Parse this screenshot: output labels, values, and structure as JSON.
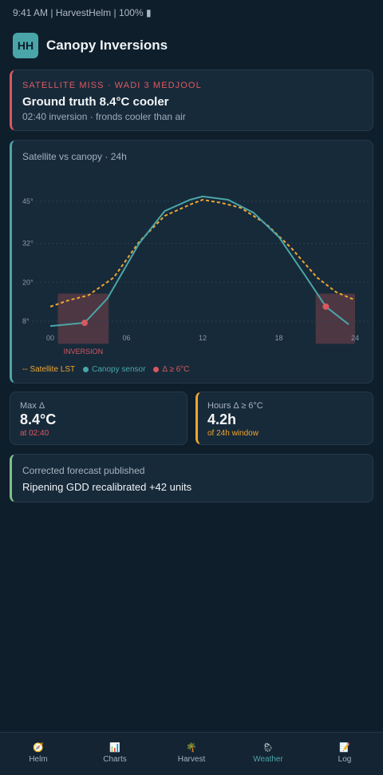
{
  "status_bar": {
    "text": "9:41 AM | HarvestHelm | 100% ▮"
  },
  "header": {
    "logo_text": "HH",
    "title": "Canopy Inversions"
  },
  "alert": {
    "kicker": "SATELLITE MISS · WADI 3 MEDJOOL",
    "headline": "Ground truth 8.4°C cooler",
    "subtext": "02:40 inversion · fronds cooler than air"
  },
  "chart_card": {
    "title": "Satellite vs canopy · 24h"
  },
  "chart_data": {
    "type": "line",
    "title": "Satellite vs canopy · 24h",
    "x_ticks": [
      "00",
      "06",
      "12",
      "18",
      "24"
    ],
    "y_ticks": [
      "8°",
      "20°",
      "32°",
      "45°"
    ],
    "xlim": [
      0,
      24
    ],
    "y_tick_values": [
      8,
      20,
      32,
      45
    ],
    "series": [
      {
        "name": "Satellite LST",
        "color": "#f0a630",
        "style": "dashed",
        "x": [
          0,
          1.5,
          3,
          5,
          7,
          9,
          11,
          12,
          13.5,
          15,
          17,
          19,
          21,
          22.5,
          24
        ],
        "y": [
          12.5,
          14.5,
          16,
          21.5,
          32.5,
          40.5,
          44,
          45.5,
          44.5,
          43,
          38,
          30.5,
          21.5,
          17,
          14.5
        ]
      },
      {
        "name": "Canopy sensor",
        "color": "#4aa5a8",
        "style": "solid",
        "x": [
          0,
          2.7,
          4.5,
          7,
          9,
          11,
          12,
          14,
          16,
          18,
          20,
          21.7,
          23.5
        ],
        "y": [
          6.5,
          7.5,
          15,
          32,
          42,
          45.5,
          46.5,
          45.5,
          41.5,
          34,
          22.5,
          12.5,
          7
        ]
      }
    ],
    "delta_points": {
      "name": "Δ ≥ 6°C",
      "color": "#d8585f",
      "x": [
        2.7,
        21.7
      ],
      "y": [
        7.5,
        12.5
      ]
    },
    "inversion_label": "INVERSION"
  },
  "legend": {
    "satellite": "-- Satellite LST",
    "canopy": "Canopy sensor",
    "delta": "Δ ≥ 6°C",
    "satellite_color": "#f0a630",
    "canopy_color": "#4aa5a8",
    "delta_color": "#d8585f"
  },
  "stats": {
    "max_delta": {
      "label": "Max Δ",
      "value": "8.4°C",
      "note": "at 02:40",
      "color": "#e0595f"
    },
    "hours_delta": {
      "label": "Hours Δ ≥ 6°C",
      "value": "4.2h",
      "note": "of 24h window",
      "color": "#f0a630"
    }
  },
  "forecast": {
    "label": "Corrected forecast published",
    "value": "Ripening GDD recalibrated +42 units"
  },
  "nav": [
    {
      "icon": "compass-icon",
      "glyph": "🧭",
      "label": "Helm"
    },
    {
      "icon": "bar-chart-icon",
      "glyph": "📊",
      "label": "Charts"
    },
    {
      "icon": "palm-tree-icon",
      "glyph": "🌴",
      "label": "Harvest"
    },
    {
      "icon": "weather-icon",
      "glyph": "🌦",
      "label": "Weather",
      "active": true
    },
    {
      "icon": "memo-icon",
      "glyph": "📝",
      "label": "Log"
    }
  ]
}
